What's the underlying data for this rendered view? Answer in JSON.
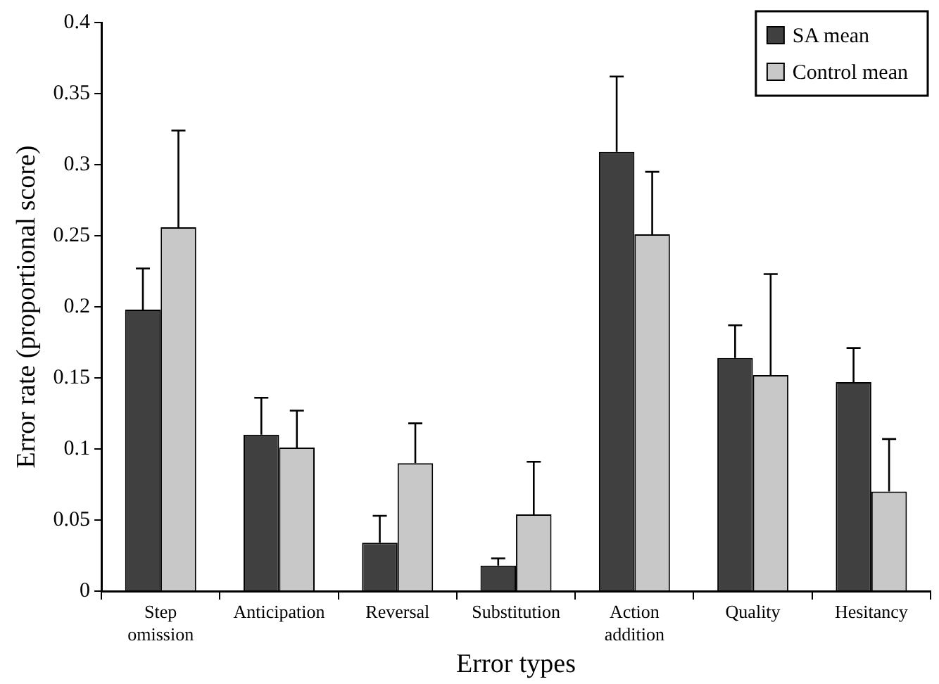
{
  "chart_data": {
    "type": "bar",
    "xlabel": "Error types",
    "ylabel": "Error rate (proportional score)",
    "categories": [
      "Step omission",
      "Anticipation",
      "Reversal",
      "Substitution",
      "Action addition",
      "Quality",
      "Hesitancy"
    ],
    "series": [
      {
        "name": "SA mean",
        "color": "#404040",
        "values": [
          0.198,
          0.11,
          0.034,
          0.018,
          0.309,
          0.164,
          0.147
        ],
        "errors": [
          [
            0.198,
            0.227
          ],
          [
            0.11,
            0.136
          ],
          [
            0.034,
            0.053
          ],
          [
            0.018,
            0.023
          ],
          [
            0.309,
            0.362
          ],
          [
            0.164,
            0.187
          ],
          [
            0.147,
            0.171
          ]
        ]
      },
      {
        "name": "Control mean",
        "color": "#c8c8c8",
        "values": [
          0.256,
          0.101,
          0.09,
          0.054,
          0.251,
          0.152,
          0.07
        ],
        "errors": [
          [
            0.256,
            0.324
          ],
          [
            0.101,
            0.127
          ],
          [
            0.09,
            0.118
          ],
          [
            0.054,
            0.091
          ],
          [
            0.251,
            0.295
          ],
          [
            0.152,
            0.223
          ],
          [
            0.07,
            0.107
          ]
        ]
      }
    ],
    "ylim": [
      0,
      0.4
    ],
    "yticks": [
      0,
      0.05,
      0.1,
      0.15,
      0.2,
      0.25,
      0.3,
      0.35,
      0.4
    ],
    "grid": false,
    "legend": "top right"
  }
}
